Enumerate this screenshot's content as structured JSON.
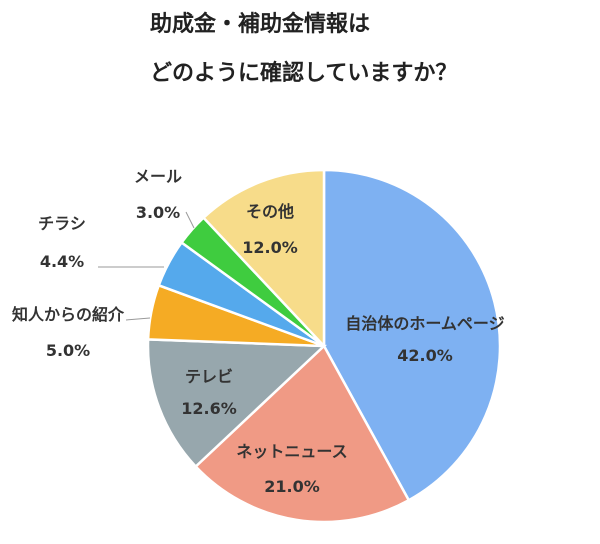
{
  "chart_data": {
    "type": "pie",
    "title_line1": "助成金・補助金情報は",
    "title_line2": "どのように確認していますか？",
    "slices": [
      {
        "label": "自治体のホームページ",
        "value": 42.0,
        "display": "42.0%",
        "color": "#7eb1f2"
      },
      {
        "label": "ネットニュース",
        "value": 21.0,
        "display": "21.0%",
        "color": "#f09a85"
      },
      {
        "label": "テレビ",
        "value": 12.6,
        "display": "12.6%",
        "color": "#97a7ad"
      },
      {
        "label": "知人からの紹介",
        "value": 5.0,
        "display": "5.0%",
        "color": "#f5ab24"
      },
      {
        "label": "チラシ",
        "value": 4.4,
        "display": "4.4%",
        "color": "#55a9ec"
      },
      {
        "label": "メール",
        "value": 3.0,
        "display": "3.0%",
        "color": "#3fcc3f"
      },
      {
        "label": "その他",
        "value": 12.0,
        "display": "12.0%",
        "color": "#f7dc8a"
      }
    ],
    "start_angle_deg": 0,
    "direction": "clockwise",
    "legend": "none"
  }
}
